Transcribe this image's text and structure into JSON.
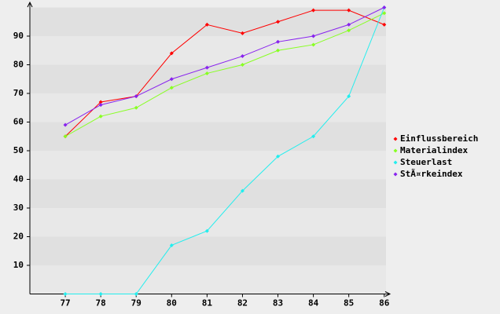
{
  "chart_data": {
    "type": "line",
    "categories": [
      "77",
      "78",
      "79",
      "80",
      "81",
      "82",
      "83",
      "84",
      "85",
      "86"
    ],
    "series": [
      {
        "name": "Einflussbereich",
        "color": "#ff0000",
        "values": [
          55,
          67,
          69,
          84,
          94,
          91,
          95,
          99,
          99,
          94
        ]
      },
      {
        "name": "Materialindex",
        "color": "#88ff22",
        "values": [
          55,
          62,
          65,
          72,
          77,
          80,
          85,
          87,
          92,
          98
        ]
      },
      {
        "name": "Steuerlast",
        "color": "#22eeee",
        "values": [
          0,
          0,
          0,
          17,
          22,
          36,
          48,
          55,
          69,
          100
        ]
      },
      {
        "name": "StÃ¤rkeindex",
        "color": "#8822ee",
        "values": [
          59,
          66,
          69,
          75,
          79,
          83,
          88,
          90,
          94,
          100
        ]
      }
    ],
    "ylim": [
      0,
      100
    ],
    "yticks": [
      10,
      20,
      30,
      40,
      50,
      60,
      70,
      80,
      90
    ],
    "grid": true,
    "legend": "right"
  }
}
